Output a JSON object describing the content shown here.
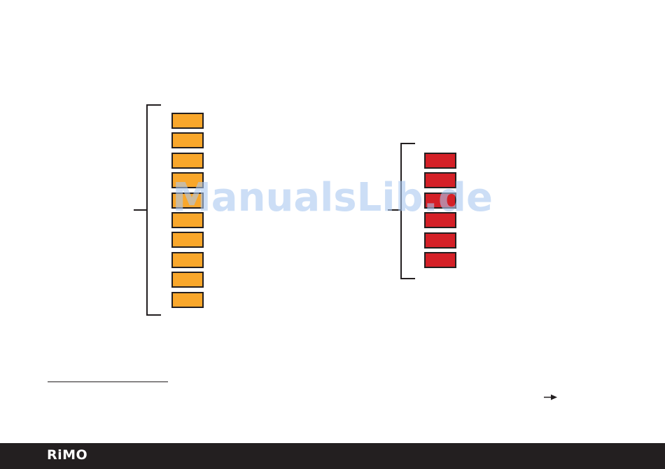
{
  "diagram": {
    "left_group": {
      "count": 10,
      "color": "#f9a72b"
    },
    "right_group": {
      "count": 6,
      "color": "#d42027"
    }
  },
  "watermark": "ManualsLib.de",
  "footer": {
    "logo": "RiMO",
    "background": "#231f20"
  }
}
